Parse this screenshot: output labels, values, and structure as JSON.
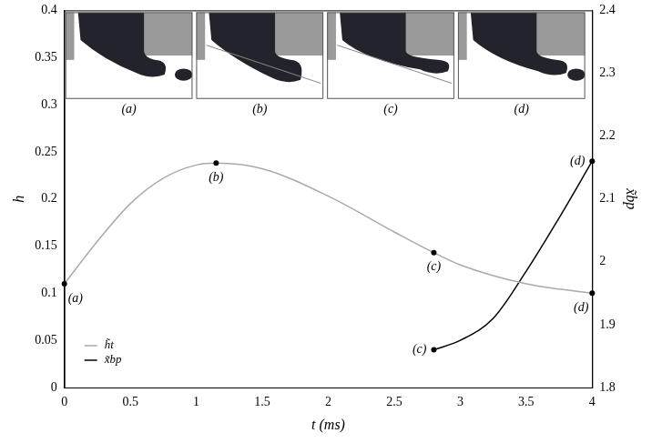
{
  "chart_data": {
    "type": "line",
    "x_label": "t (ms)",
    "y_label": "h",
    "y2_label": "x̃bp",
    "xlim": [
      0,
      4
    ],
    "xticks": [
      0,
      0.5,
      1,
      1.5,
      2,
      2.5,
      3,
      3.5,
      4
    ],
    "ylim": [
      0,
      0.4
    ],
    "yticks": [
      0,
      0.05,
      0.1,
      0.15,
      0.2,
      0.25,
      0.3,
      0.35,
      0.4
    ],
    "y2lim": [
      1.8,
      2.4
    ],
    "y2ticks": [
      1.8,
      1.9,
      2,
      2.1,
      2.2,
      2.3,
      2.4
    ],
    "grid": false,
    "legend": "lower left",
    "series": [
      {
        "name": "h̃t",
        "color": "#aaaaaa",
        "x": [
          0,
          0.25,
          0.5,
          0.75,
          1.0,
          1.15,
          1.5,
          2.0,
          2.5,
          2.8,
          3.0,
          3.5,
          4.0
        ],
        "values": [
          0.11,
          0.155,
          0.195,
          0.222,
          0.236,
          0.238,
          0.232,
          0.203,
          0.165,
          0.143,
          0.13,
          0.11,
          0.1
        ]
      },
      {
        "name": "x̃bp",
        "color": "#000000",
        "axis": "y2",
        "x": [
          2.8,
          3.0,
          3.25,
          3.5,
          3.75,
          4.0
        ],
        "values": [
          1.86,
          1.875,
          1.91,
          1.985,
          2.07,
          2.16
        ]
      }
    ],
    "annotations": [
      {
        "text": "(a)",
        "x": 0,
        "y": 0.11
      },
      {
        "text": "(b)",
        "x": 1.15,
        "y": 0.238
      },
      {
        "text": "(c)",
        "x": 2.8,
        "y": 0.143
      },
      {
        "text": "(d)",
        "x": 4.0,
        "y": 0.1
      },
      {
        "text": "(c)",
        "x": 2.8,
        "y": 1.86,
        "axis": "y2"
      },
      {
        "text": "(d)",
        "x": 4.0,
        "y": 2.16,
        "axis": "y2"
      }
    ],
    "insets": [
      "(a)",
      "(b)",
      "(c)",
      "(d)"
    ]
  }
}
